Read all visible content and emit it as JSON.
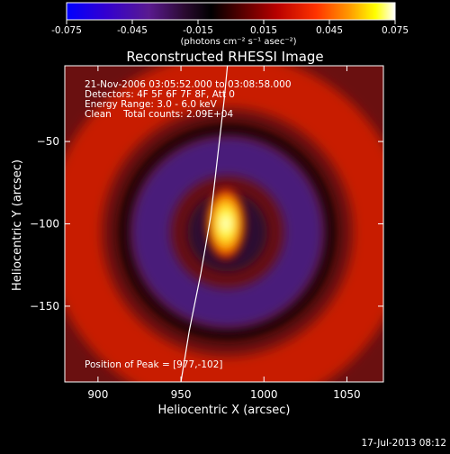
{
  "colorbar": {
    "ticks": [
      "-0.075",
      "-0.045",
      "-0.015",
      "0.015",
      "0.045",
      "0.075"
    ],
    "tick_values": [
      -0.075,
      -0.045,
      -0.015,
      0.015,
      0.045,
      0.075
    ],
    "unit_label": "(photons cm⁻² s⁻¹ asec⁻²)",
    "colors": [
      "#0000ff",
      "#3a00c8",
      "#5a1a90",
      "#2a0a30",
      "#000000",
      "#4a0000",
      "#b80000",
      "#ff3300",
      "#ff9900",
      "#ffff00",
      "#ffffff"
    ]
  },
  "footer": {
    "date": "17-Jul-2013 08:12"
  },
  "chart_data": {
    "type": "heatmap",
    "title": "Reconstructed RHESSI Image",
    "xlabel": "Heliocentric X (arcsec)",
    "ylabel": "Heliocentric Y (arcsec)",
    "xlim": [
      880,
      1072
    ],
    "ylim": [
      -196,
      -4
    ],
    "xticks": [
      900,
      950,
      1000,
      1050
    ],
    "yticks": [
      -50,
      -100,
      -150
    ],
    "xtick_labels": [
      "900",
      "950",
      "1000",
      "1050"
    ],
    "ytick_labels": [
      "−50",
      "−100",
      "−150"
    ],
    "annotations": {
      "time_range": "21-Nov-2006 03:05:52.000 to 03:08:58.000",
      "detectors": "Detectors: 4F 5F 6F 7F 8F, Att 0",
      "energy": "Energy Range: 3.0 - 6.0 keV",
      "clean": "Clean    Total counts: 2.09E+04",
      "peak": "Position of Peak = [977,-102]"
    },
    "peak": [
      977,
      -102
    ],
    "peak_value": 0.075,
    "ring": {
      "center": [
        978,
        -105
      ],
      "radius_x": 92,
      "radius_y": 92,
      "value": 0.03
    },
    "inner_ring": {
      "center": [
        978,
        -105
      ],
      "radius": 46,
      "value": -0.02
    },
    "limb_points": [
      [
        950,
        -196
      ],
      [
        955,
        -165
      ],
      [
        962,
        -130
      ],
      [
        968,
        -95
      ],
      [
        972,
        -60
      ],
      [
        976,
        -25
      ],
      [
        978,
        -4
      ]
    ]
  }
}
